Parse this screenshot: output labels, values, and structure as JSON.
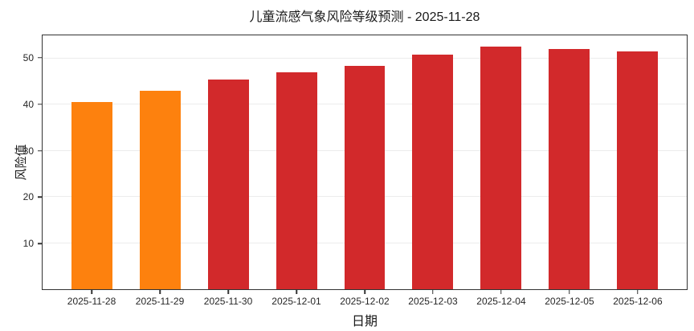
{
  "chart_data": {
    "type": "bar",
    "title": "儿童流感气象风险等级预测 - 2025-11-28",
    "xlabel": "日期",
    "ylabel": "风险值",
    "categories": [
      "2025-11-28",
      "2025-11-29",
      "2025-11-30",
      "2025-12-01",
      "2025-12-02",
      "2025-12-03",
      "2025-12-04",
      "2025-12-05",
      "2025-12-06"
    ],
    "values": [
      40.5,
      43.0,
      45.5,
      47.0,
      48.4,
      50.8,
      52.5,
      52.0,
      51.6
    ],
    "bar_colors": [
      "#fd810e",
      "#fd810e",
      "#d2292b",
      "#d2292b",
      "#d2292b",
      "#d2292b",
      "#d2292b",
      "#d2292b",
      "#d2292b"
    ],
    "ylim": [
      0,
      55
    ],
    "yticks": [
      10,
      20,
      30,
      40,
      50
    ],
    "xlim": [
      -0.73,
      8.73
    ],
    "bar_width": 0.6,
    "grid": "horizontal-only",
    "legend": "none",
    "colors": {
      "orange_risk": "#fd810e",
      "red_risk": "#d2292b",
      "gridline": "#ececec",
      "spine": "#333333",
      "text": "#262626"
    }
  }
}
